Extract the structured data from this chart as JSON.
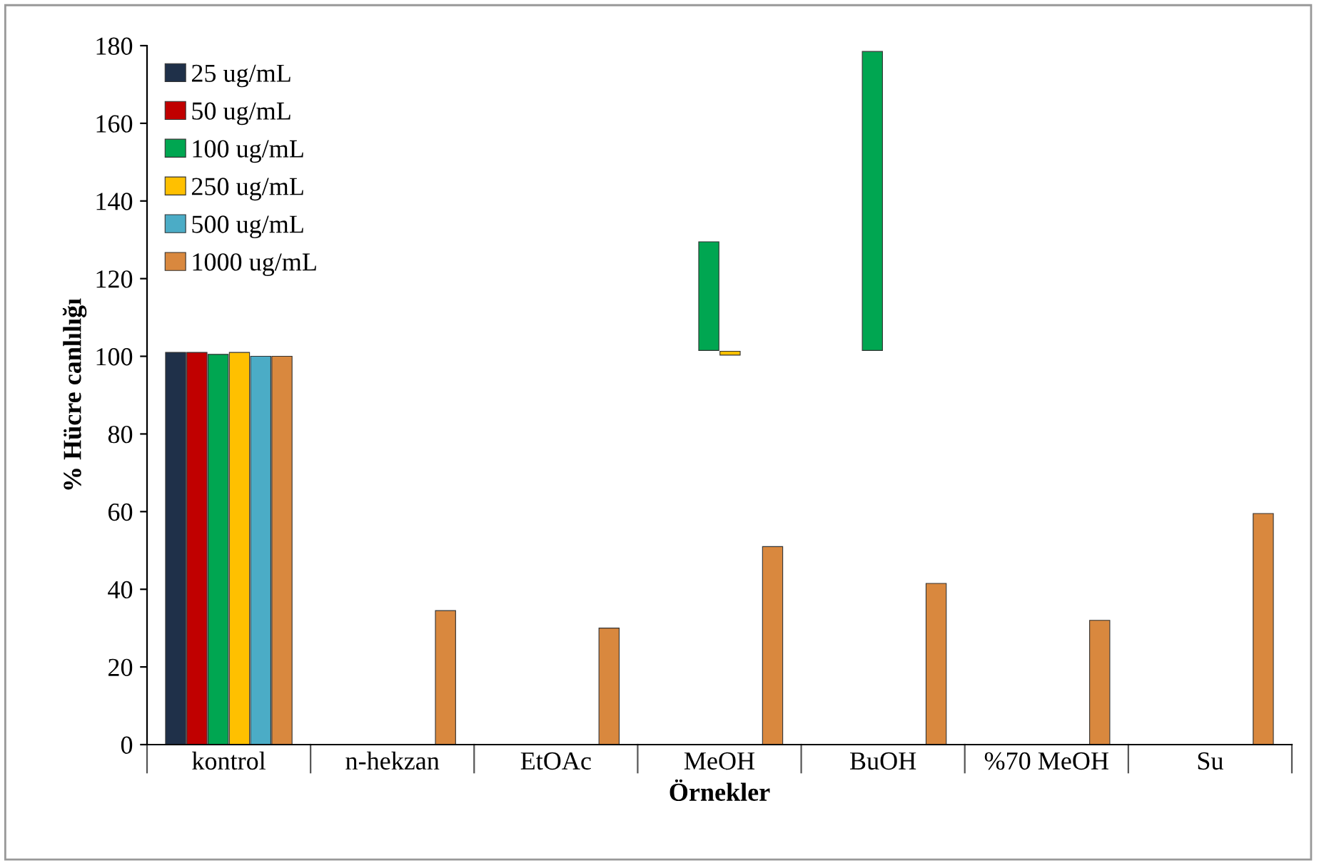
{
  "chart_data": {
    "type": "bar",
    "xlabel": "Örnekler",
    "ylabel": "% Hücre canlılığı",
    "categories": [
      "kontrol",
      "n-hekzan",
      "EtOAc",
      "MeOH",
      "BuOH",
      "%70 MeOH",
      "Su"
    ],
    "series": [
      {
        "name": "25 ug/mL",
        "color": "#1f3049",
        "values": [
          101,
          null,
          null,
          null,
          null,
          null,
          null
        ]
      },
      {
        "name": "50 ug/mL",
        "color": "#c00000",
        "values": [
          101,
          null,
          null,
          null,
          null,
          null,
          null
        ]
      },
      {
        "name": "100 ug/mL",
        "color": "#00a651",
        "values": [
          100.5,
          null,
          null,
          28,
          77,
          null,
          null
        ],
        "base": [
          0,
          null,
          null,
          101.5,
          101.5,
          null,
          null
        ]
      },
      {
        "name": "250 ug/mL",
        "color": "#ffc000",
        "values": [
          101,
          null,
          null,
          1,
          null,
          null,
          null
        ],
        "base": [
          0,
          null,
          null,
          100.3,
          null,
          null,
          null
        ]
      },
      {
        "name": "500 ug/mL",
        "color": "#4bacc6",
        "values": [
          100,
          null,
          null,
          null,
          null,
          null,
          null
        ]
      },
      {
        "name": "1000 ug/mL",
        "color": "#d9883e",
        "values": [
          100,
          34.5,
          30,
          51,
          41.5,
          32,
          59.5
        ]
      }
    ],
    "ylim": [
      0,
      180
    ],
    "yticks": [
      0,
      20,
      40,
      60,
      80,
      100,
      120,
      140,
      160,
      180
    ],
    "grid": false,
    "legend": "top left"
  }
}
